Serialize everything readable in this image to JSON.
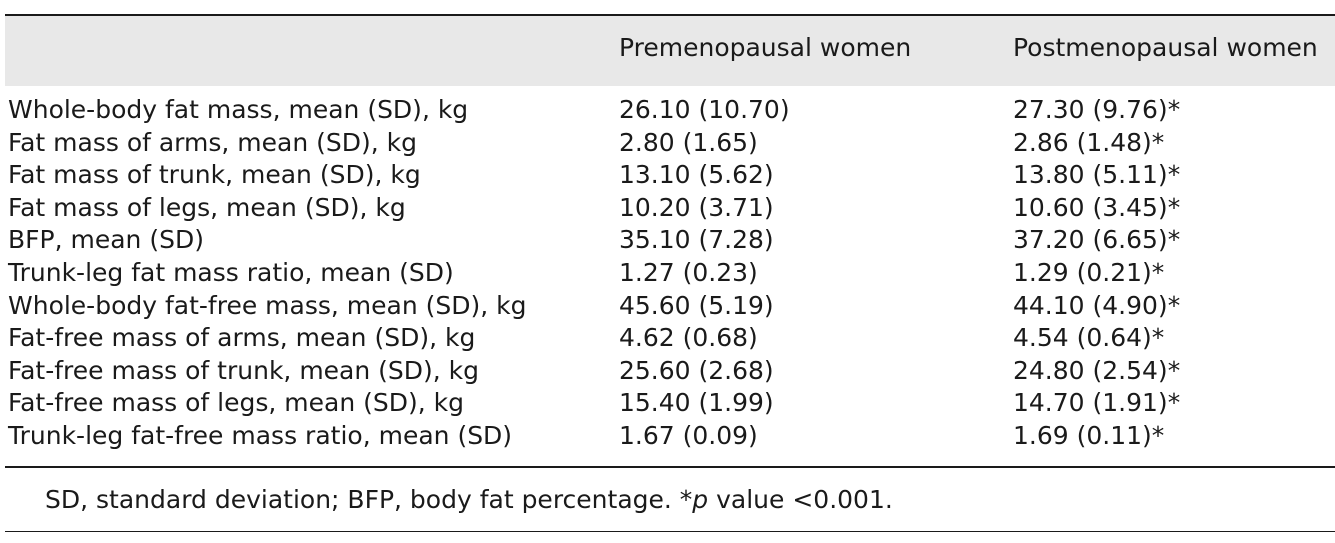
{
  "table": {
    "columns": [
      "",
      "Premenopausal women",
      "Postmenopausal women"
    ],
    "rows": [
      {
        "label": "Whole-body fat mass, mean (SD), kg",
        "pre": "26.10 (10.70)",
        "post": "27.30 (9.76)*"
      },
      {
        "label": "Fat mass of arms, mean (SD), kg",
        "pre": "2.80 (1.65)",
        "post": "2.86 (1.48)*"
      },
      {
        "label": "Fat mass of trunk, mean (SD), kg",
        "pre": "13.10 (5.62)",
        "post": "13.80 (5.11)*"
      },
      {
        "label": "Fat mass of legs, mean (SD), kg",
        "pre": "10.20 (3.71)",
        "post": "10.60 (3.45)*"
      },
      {
        "label": "BFP, mean (SD)",
        "pre": "35.10 (7.28)",
        "post": "37.20 (6.65)*"
      },
      {
        "label": "Trunk-leg fat mass ratio, mean (SD)",
        "pre": "1.27 (0.23)",
        "post": "1.29 (0.21)*"
      },
      {
        "label": "Whole-body fat-free mass, mean (SD), kg",
        "pre": "45.60 (5.19)",
        "post": "44.10 (4.90)*"
      },
      {
        "label": "Fat-free mass of arms, mean (SD), kg",
        "pre": "4.62 (0.68)",
        "post": "4.54 (0.64)*"
      },
      {
        "label": "Fat-free mass of trunk, mean (SD), kg",
        "pre": "25.60 (2.68)",
        "post": "24.80 (2.54)*"
      },
      {
        "label": "Fat-free mass of legs, mean (SD), kg",
        "pre": "15.40 (1.99)",
        "post": "14.70 (1.91)*"
      },
      {
        "label": "Trunk-leg fat-free mass ratio, mean (SD)",
        "pre": "1.67 (0.09)",
        "post": "1.69 (0.11)*"
      }
    ]
  },
  "footnote": {
    "before_p": "SD, standard deviation; BFP, body fat percentage. *",
    "p": "p",
    "after_p": " value <0.001."
  }
}
